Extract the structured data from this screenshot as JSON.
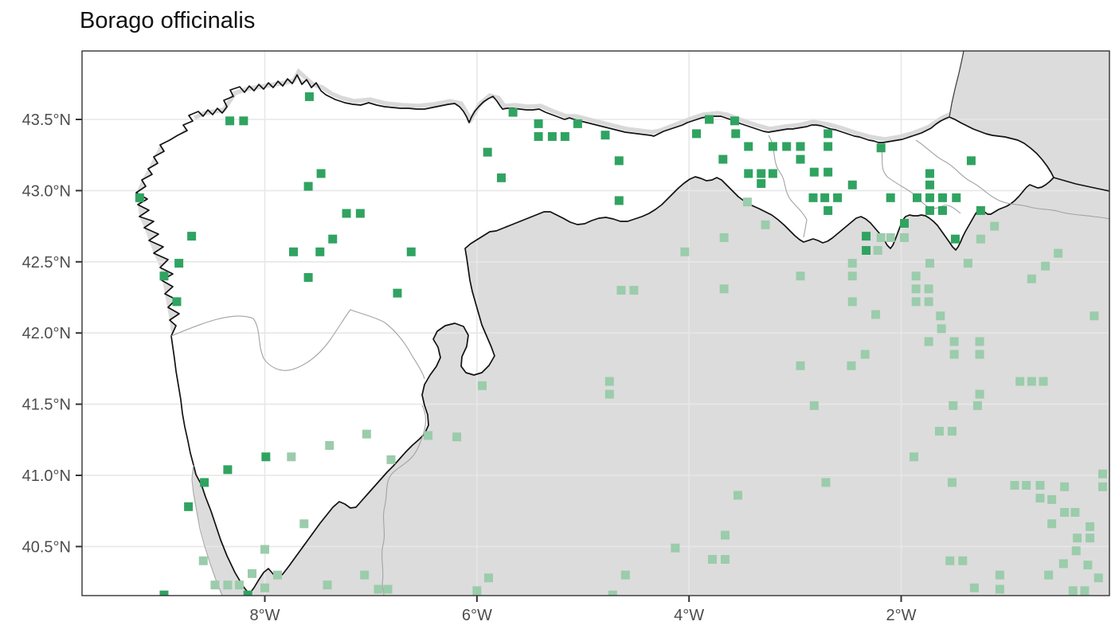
{
  "title": "Borago officinalis",
  "chart_data": {
    "type": "scatter",
    "subtype": "occurrence-map",
    "title": "Borago officinalis",
    "xlabel": "",
    "ylabel": "",
    "grid": true,
    "x_axis": {
      "unit": "longitude",
      "range": [
        -9.72,
        -0.04
      ],
      "ticks": [
        {
          "label": "8°W",
          "value": -8
        },
        {
          "label": "6°W",
          "value": -6
        },
        {
          "label": "4°W",
          "value": -4
        },
        {
          "label": "2°W",
          "value": -2
        }
      ]
    },
    "y_axis": {
      "unit": "latitude",
      "range": [
        40.14,
        43.98
      ],
      "ticks": [
        {
          "label": "43.5°N",
          "value": 43.5
        },
        {
          "label": "43.0°N",
          "value": 43.0
        },
        {
          "label": "42.5°N",
          "value": 42.5
        },
        {
          "label": "42.0°N",
          "value": 42.0
        },
        {
          "label": "41.5°N",
          "value": 41.5
        },
        {
          "label": "41.0°N",
          "value": 41.0
        },
        {
          "label": "40.5°N",
          "value": 40.5
        }
      ]
    },
    "series": [
      {
        "name": "occurrences-inside-region",
        "marker": "square",
        "marker_size": 11,
        "color": "#30a361",
        "points": [
          [
            -7.58,
            43.66
          ],
          [
            -8.33,
            43.49
          ],
          [
            -8.2,
            43.49
          ],
          [
            -7.47,
            43.12
          ],
          [
            -7.59,
            43.03
          ],
          [
            -9.18,
            42.95
          ],
          [
            -8.69,
            42.68
          ],
          [
            -7.23,
            42.84
          ],
          [
            -7.1,
            42.84
          ],
          [
            -7.36,
            42.66
          ],
          [
            -7.73,
            42.57
          ],
          [
            -7.48,
            42.57
          ],
          [
            -6.62,
            42.57
          ],
          [
            -8.81,
            42.49
          ],
          [
            -8.95,
            42.4
          ],
          [
            -7.59,
            42.39
          ],
          [
            -6.75,
            42.28
          ],
          [
            -8.83,
            42.22
          ],
          [
            -5.66,
            43.55
          ],
          [
            -5.42,
            43.47
          ],
          [
            -5.05,
            43.47
          ],
          [
            -5.42,
            43.38
          ],
          [
            -5.29,
            43.38
          ],
          [
            -5.17,
            43.38
          ],
          [
            -4.79,
            43.39
          ],
          [
            -5.9,
            43.27
          ],
          [
            -5.77,
            43.09
          ],
          [
            -4.66,
            43.21
          ],
          [
            -4.66,
            42.93
          ],
          [
            -3.93,
            43.4
          ],
          [
            -3.81,
            43.5
          ],
          [
            -3.57,
            43.49
          ],
          [
            -3.56,
            43.4
          ],
          [
            -3.68,
            43.22
          ],
          [
            -3.44,
            43.31
          ],
          [
            -3.44,
            43.12
          ],
          [
            -3.32,
            43.12
          ],
          [
            -3.32,
            43.05
          ],
          [
            -3.21,
            43.31
          ],
          [
            -3.08,
            43.31
          ],
          [
            -2.95,
            43.31
          ],
          [
            -2.69,
            43.4
          ],
          [
            -2.69,
            43.31
          ],
          [
            -2.95,
            43.22
          ],
          [
            -3.21,
            43.12
          ],
          [
            -2.82,
            43.13
          ],
          [
            -2.69,
            43.13
          ],
          [
            -2.46,
            43.04
          ],
          [
            -2.19,
            43.3
          ],
          [
            -2.83,
            42.95
          ],
          [
            -2.72,
            42.95
          ],
          [
            -2.6,
            42.95
          ],
          [
            -2.69,
            42.86
          ],
          [
            -2.1,
            42.95
          ],
          [
            -1.85,
            42.95
          ],
          [
            -1.73,
            42.95
          ],
          [
            -1.61,
            42.95
          ],
          [
            -1.48,
            42.95
          ],
          [
            -1.73,
            43.12
          ],
          [
            -1.73,
            43.04
          ],
          [
            -1.73,
            42.86
          ],
          [
            -1.61,
            42.86
          ],
          [
            -1.34,
            43.21
          ],
          [
            -1.49,
            42.66
          ],
          [
            -2.33,
            42.68
          ],
          [
            -2.33,
            42.58
          ],
          [
            -1.97,
            42.77
          ],
          [
            -1.25,
            42.86
          ],
          [
            -7.99,
            41.13
          ],
          [
            -8.35,
            41.04
          ],
          [
            -8.57,
            40.95
          ],
          [
            -8.72,
            40.78
          ],
          [
            -8.95,
            40.16
          ],
          [
            -8.16,
            40.16
          ]
        ]
      },
      {
        "name": "occurrences-outside-region",
        "marker": "square",
        "marker_size": 11,
        "color": "#9bccab",
        "points": [
          [
            -3.45,
            42.92
          ],
          [
            -3.67,
            42.67
          ],
          [
            -4.04,
            42.57
          ],
          [
            -4.64,
            42.3
          ],
          [
            -4.52,
            42.3
          ],
          [
            -3.67,
            42.31
          ],
          [
            -3.28,
            42.76
          ],
          [
            -2.19,
            42.67
          ],
          [
            -2.1,
            42.67
          ],
          [
            -1.97,
            42.67
          ],
          [
            -2.22,
            42.58
          ],
          [
            -2.46,
            42.49
          ],
          [
            -2.46,
            42.4
          ],
          [
            -2.95,
            42.4
          ],
          [
            -2.46,
            42.22
          ],
          [
            -2.24,
            42.13
          ],
          [
            -1.86,
            42.4
          ],
          [
            -1.86,
            42.31
          ],
          [
            -1.74,
            42.31
          ],
          [
            -1.86,
            42.22
          ],
          [
            -1.74,
            42.22
          ],
          [
            -1.73,
            42.49
          ],
          [
            -1.63,
            42.12
          ],
          [
            -1.37,
            42.49
          ],
          [
            -1.25,
            42.66
          ],
          [
            -1.12,
            42.75
          ],
          [
            -0.77,
            42.38
          ],
          [
            -0.64,
            42.47
          ],
          [
            -0.52,
            42.56
          ],
          [
            -0.18,
            42.12
          ],
          [
            -7.75,
            41.13
          ],
          [
            -7.39,
            41.21
          ],
          [
            -7.04,
            41.29
          ],
          [
            -6.81,
            41.11
          ],
          [
            -7.63,
            40.66
          ],
          [
            -8.0,
            40.48
          ],
          [
            -8.58,
            40.4
          ],
          [
            -8.12,
            40.31
          ],
          [
            -7.88,
            40.3
          ],
          [
            -8.47,
            40.23
          ],
          [
            -8.35,
            40.23
          ],
          [
            -8.24,
            40.23
          ],
          [
            -8.0,
            40.21
          ],
          [
            -7.06,
            40.3
          ],
          [
            -7.41,
            40.23
          ],
          [
            -6.93,
            40.2
          ],
          [
            -6.84,
            40.2
          ],
          [
            -5.95,
            41.63
          ],
          [
            -4.75,
            41.66
          ],
          [
            -4.75,
            41.57
          ],
          [
            -6.46,
            41.28
          ],
          [
            -6.19,
            41.27
          ],
          [
            -3.54,
            40.86
          ],
          [
            -3.66,
            40.58
          ],
          [
            -4.13,
            40.49
          ],
          [
            -3.78,
            40.41
          ],
          [
            -3.66,
            40.41
          ],
          [
            -4.6,
            40.3
          ],
          [
            -5.89,
            40.28
          ],
          [
            -6.0,
            40.19
          ],
          [
            -4.72,
            40.16
          ],
          [
            -1.62,
            42.03
          ],
          [
            -1.74,
            41.94
          ],
          [
            -1.5,
            41.94
          ],
          [
            -1.26,
            41.94
          ],
          [
            -1.5,
            41.85
          ],
          [
            -1.26,
            41.85
          ],
          [
            -2.34,
            41.85
          ],
          [
            -2.95,
            41.77
          ],
          [
            -2.47,
            41.77
          ],
          [
            -0.88,
            41.66
          ],
          [
            -0.77,
            41.66
          ],
          [
            -0.66,
            41.66
          ],
          [
            -1.26,
            41.57
          ],
          [
            -2.82,
            41.49
          ],
          [
            -1.51,
            41.49
          ],
          [
            -1.28,
            41.49
          ],
          [
            -1.64,
            41.31
          ],
          [
            -1.52,
            41.31
          ],
          [
            -1.88,
            41.13
          ],
          [
            -2.71,
            40.95
          ],
          [
            -1.52,
            40.95
          ],
          [
            -0.93,
            40.93
          ],
          [
            -0.82,
            40.93
          ],
          [
            -0.69,
            40.93
          ],
          [
            -0.46,
            40.92
          ],
          [
            -0.1,
            40.92
          ],
          [
            -0.69,
            40.84
          ],
          [
            -0.58,
            40.83
          ],
          [
            -0.46,
            40.74
          ],
          [
            -0.36,
            40.74
          ],
          [
            -0.58,
            40.66
          ],
          [
            -0.22,
            40.64
          ],
          [
            -0.34,
            40.56
          ],
          [
            -0.22,
            40.56
          ],
          [
            -0.35,
            40.47
          ],
          [
            -1.54,
            40.4
          ],
          [
            -1.42,
            40.4
          ],
          [
            -0.47,
            40.38
          ],
          [
            -0.24,
            40.37
          ],
          [
            -1.07,
            40.3
          ],
          [
            -0.61,
            40.3
          ],
          [
            -0.14,
            40.28
          ],
          [
            -1.31,
            40.21
          ],
          [
            -1.07,
            40.2
          ],
          [
            -0.38,
            40.19
          ],
          [
            -0.27,
            40.19
          ],
          [
            -0.1,
            41.01
          ]
        ]
      }
    ],
    "legend": null
  },
  "colors": {
    "inside_region_marker": "#30a361",
    "outside_region_marker": "#9bccab",
    "land_outside": "#dcdcdc",
    "region_fill": "#ffffff",
    "sea": "#ffffff",
    "gridline": "#e7e7e7",
    "coast_band": "#d9d9d9",
    "coastline": "#111111",
    "inner_border": "#a3a3a3",
    "panel_border": "#333333",
    "axis_text": "#4d4d4d",
    "title_text": "#111111"
  }
}
